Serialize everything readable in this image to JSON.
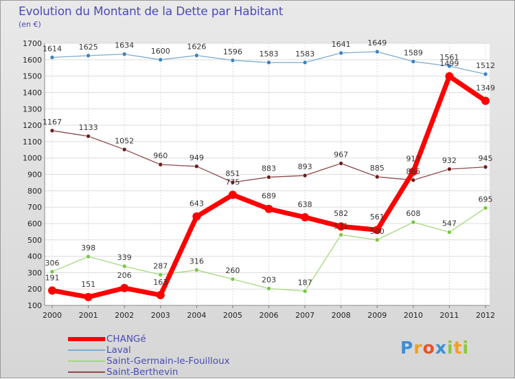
{
  "header": {
    "title": "Evolution du Montant de la Dette par Habitant",
    "subtitle": "(en €)"
  },
  "logo": {
    "text": "Proxiti",
    "letters": [
      {
        "char": "P",
        "color": "#3b8fd6"
      },
      {
        "char": "r",
        "color": "#f0a020"
      },
      {
        "char": "o",
        "color": "#e8502a"
      },
      {
        "char": "x",
        "color": "#3b8fd6"
      },
      {
        "char": "i",
        "color": "#8cc63f"
      },
      {
        "char": "t",
        "color": "#f0a020"
      },
      {
        "char": "i",
        "color": "#8cc63f"
      }
    ]
  },
  "chart_data": {
    "type": "line",
    "title": "Evolution du Montant de la Dette par Habitant",
    "subtitle": "(en €)",
    "xlabel": "",
    "ylabel": "",
    "x": [
      "2000",
      "2001",
      "2002",
      "2003",
      "2004",
      "2005",
      "2006",
      "2007",
      "2008",
      "2009",
      "2010",
      "2011",
      "2012"
    ],
    "ylim": [
      100,
      1700
    ],
    "yticks": [
      100,
      200,
      300,
      400,
      500,
      600,
      700,
      800,
      900,
      1000,
      1100,
      1200,
      1300,
      1400,
      1500,
      1600,
      1700
    ],
    "grid": true,
    "legend_position": "bottom-left",
    "series": [
      {
        "name": "CHANGé",
        "color": "#ff0000",
        "marker_color": "#ff0000",
        "width": 7,
        "marker_r": 6,
        "values": [
          191,
          151,
          206,
          163,
          643,
          775,
          689,
          638,
          582,
          561,
          917,
          1499,
          1349
        ]
      },
      {
        "name": "Laval",
        "color": "#7aabcf",
        "marker_color": "#3a83c2",
        "width": 1.3,
        "marker_r": 3,
        "values": [
          1614,
          1625,
          1634,
          1600,
          1626,
          1596,
          1583,
          1583,
          1641,
          1649,
          1589,
          1561,
          1512
        ]
      },
      {
        "name": "Saint-Germain-le-Fouilloux",
        "color": "#a6d87e",
        "marker_color": "#78c940",
        "width": 1.3,
        "marker_r": 3,
        "values": [
          306,
          398,
          339,
          287,
          316,
          260,
          203,
          187,
          531,
          500,
          608,
          547,
          695
        ]
      },
      {
        "name": "Saint-Berthevin",
        "color": "#8c4a4a",
        "marker_color": "#6e1d1d",
        "width": 1.3,
        "marker_r": 3,
        "values": [
          1167,
          1133,
          1052,
          960,
          949,
          851,
          883,
          893,
          967,
          885,
          865,
          932,
          945
        ]
      }
    ]
  }
}
